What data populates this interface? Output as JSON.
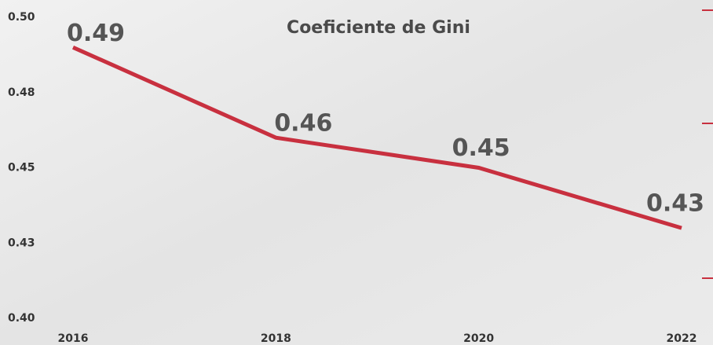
{
  "chart_data": {
    "type": "line",
    "title": "Coeficiente de Gini",
    "categories": [
      "2016",
      "2018",
      "2020",
      "2022"
    ],
    "series": [
      {
        "name": "Coeficiente de Gini",
        "color": "#c8303f",
        "values": [
          0.49,
          0.46,
          0.45,
          0.43
        ]
      }
    ],
    "ylim": [
      0.4,
      0.5
    ],
    "yticks": [
      {
        "value": 0.4,
        "label": "0.40"
      },
      {
        "value": 0.425,
        "label": "0.43"
      },
      0.45,
      {
        "value": 0.475,
        "label": "0.48"
      },
      {
        "value": 0.5,
        "label": "0.50"
      }
    ]
  }
}
